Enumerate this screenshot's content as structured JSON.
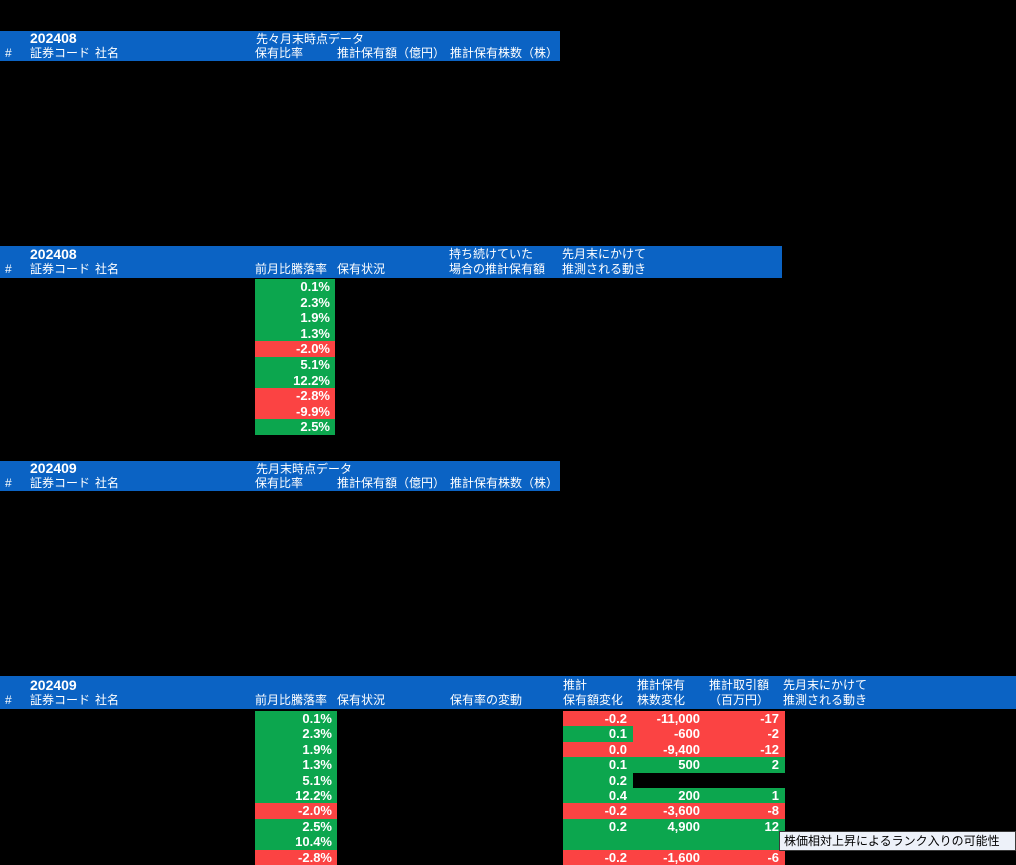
{
  "colors": {
    "header_blue": "#0b63c4",
    "green": "#0ca64e",
    "red": "#fb4343",
    "tooltip_bg": "#edf1f9",
    "text_white": "#ffffff"
  },
  "section1": {
    "year": "202408",
    "period": "先々月末時点データ",
    "col_hash": "#",
    "col_code": "証券コード",
    "col_name": "社名",
    "col_ratio": "保有比率",
    "col_amount": "推計保有額（億円）",
    "col_shares": "推計保有株数（株）"
  },
  "section2": {
    "year": "202408",
    "col_hash": "#",
    "col_code": "証券コード",
    "col_name": "社名",
    "col_change": "前月比騰落率",
    "col_status": "保有状況",
    "col_hold_line1": "持ち続けていた",
    "col_hold_line2": "場合の推計保有額",
    "col_move_line1": "先月末にかけて",
    "col_move_line2": "推測される動き",
    "rows": [
      {
        "pct": "0.1%",
        "c": "green"
      },
      {
        "pct": "2.3%",
        "c": "green"
      },
      {
        "pct": "1.9%",
        "c": "green"
      },
      {
        "pct": "1.3%",
        "c": "green"
      },
      {
        "pct": "-2.0%",
        "c": "red"
      },
      {
        "pct": "5.1%",
        "c": "green"
      },
      {
        "pct": "12.2%",
        "c": "green"
      },
      {
        "pct": "-2.8%",
        "c": "red"
      },
      {
        "pct": "-9.9%",
        "c": "red"
      },
      {
        "pct": "2.5%",
        "c": "green"
      }
    ]
  },
  "section3": {
    "year": "202409",
    "period": "先月末時点データ",
    "col_hash": "#",
    "col_code": "証券コード",
    "col_name": "社名",
    "col_ratio": "保有比率",
    "col_amount": "推計保有額（億円）",
    "col_shares": "推計保有株数（株）"
  },
  "section4": {
    "year": "202409",
    "col_hash": "#",
    "col_code": "証券コード",
    "col_name": "社名",
    "col_change": "前月比騰落率",
    "col_status": "保有状況",
    "col_variation": "保有率の変動",
    "col_amt_line1": "推計",
    "col_amt_line2": "保有額変化",
    "col_shares_line1": "推計保有",
    "col_shares_line2": "株数変化",
    "col_trade_line1": "推計取引額",
    "col_trade_line2": "（百万円）",
    "col_move_line1": "先月末にかけて",
    "col_move_line2": "推測される動き",
    "rows": [
      {
        "pct": "0.1%",
        "pc": "green",
        "amt": "-0.2",
        "ac": "red",
        "sh": "-11,000",
        "sc": "red",
        "tr": "-17",
        "tc": "red"
      },
      {
        "pct": "2.3%",
        "pc": "green",
        "amt": "0.1",
        "ac": "green",
        "sh": "-600",
        "sc": "red",
        "tr": "-2",
        "tc": "red"
      },
      {
        "pct": "1.9%",
        "pc": "green",
        "amt": "0.0",
        "ac": "red",
        "sh": "-9,400",
        "sc": "red",
        "tr": "-12",
        "tc": "red"
      },
      {
        "pct": "1.3%",
        "pc": "green",
        "amt": "0.1",
        "ac": "green",
        "sh": "500",
        "sc": "green",
        "tr": "2",
        "tc": "green"
      },
      {
        "pct": "5.1%",
        "pc": "green",
        "amt": "0.2",
        "ac": "green",
        "sh": null,
        "sc": null,
        "tr": null,
        "tc": null
      },
      {
        "pct": "12.2%",
        "pc": "green",
        "amt": "0.4",
        "ac": "green",
        "sh": "200",
        "sc": "green",
        "tr": "1",
        "tc": "green"
      },
      {
        "pct": "-2.0%",
        "pc": "red",
        "amt": "-0.2",
        "ac": "red",
        "sh": "-3,600",
        "sc": "red",
        "tr": "-8",
        "tc": "red"
      },
      {
        "pct": "2.5%",
        "pc": "green",
        "amt": "0.2",
        "ac": "green",
        "sh": "4,900",
        "sc": "green",
        "tr": "12",
        "tc": "green"
      },
      {
        "pct": "10.4%",
        "pc": "green",
        "amt": "",
        "ac": "green",
        "sh": "",
        "sc": "green",
        "tr": "",
        "tc": "green"
      },
      {
        "pct": "-2.8%",
        "pc": "red",
        "amt": "-0.2",
        "ac": "red",
        "sh": "-1,600",
        "sc": "red",
        "tr": "-6",
        "tc": "red"
      }
    ]
  },
  "tooltip": {
    "text": "株価相対上昇によるランク入りの可能性"
  }
}
